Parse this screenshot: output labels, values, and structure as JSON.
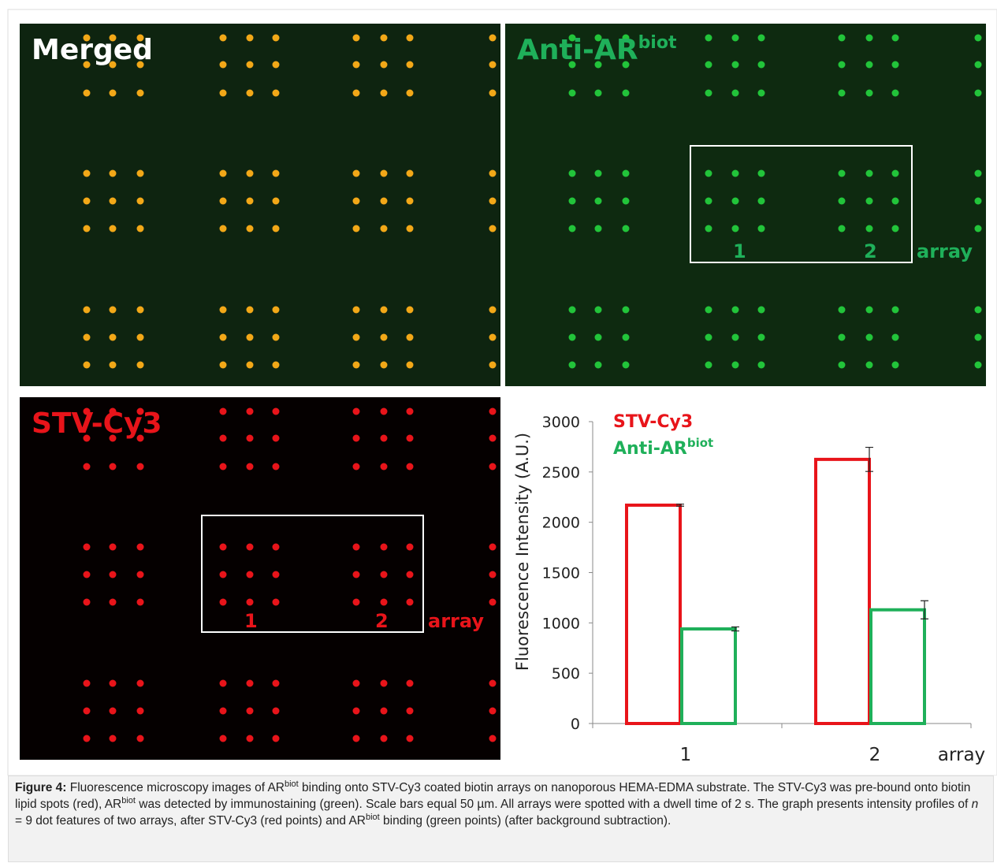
{
  "images": [
    {
      "label": "Merged"
    },
    {
      "label": "Anti-AR",
      "label_sup": "biot",
      "box_labels": [
        "1",
        "2",
        "array"
      ]
    },
    {
      "label": "STV-Cy3",
      "box_labels": [
        "1",
        "2",
        "array"
      ]
    }
  ],
  "chart_data": {
    "type": "bar",
    "y_label": "Fluorescence Intensity (A.U.)",
    "x_label": "array",
    "categories": [
      "1",
      "2"
    ],
    "series": [
      {
        "name": "STV-Cy3",
        "color": "#e8141a",
        "values": [
          2170,
          2625
        ],
        "errors": [
          10,
          120
        ]
      },
      {
        "name": "Anti-AR",
        "name_sup": "biot",
        "color": "#1fb05a",
        "values": [
          940,
          1130
        ],
        "errors": [
          20,
          90
        ]
      }
    ],
    "ylim": [
      0,
      3000
    ],
    "yticks": [
      0,
      500,
      1000,
      1500,
      2000,
      2500,
      3000
    ]
  },
  "caption": {
    "parts": [
      {
        "text": "Figure 4:",
        "style": "bold"
      },
      {
        "text": " Fluorescence microscopy images of AR"
      },
      {
        "text": "biot",
        "style": "sup"
      },
      {
        "text": " binding onto STV-Cy3 coated biotin arrays on nanoporous HEMA-EDMA substrate. The STV-Cy3 was pre-bound onto biotin lipid spots (red), AR"
      },
      {
        "text": "biot",
        "style": "sup"
      },
      {
        "text": " was detected by immunostaining (green). Scale bars equal 50 µm. All arrays were spotted with a dwell time of 2 s. The graph presents intensity profiles of "
      },
      {
        "text": "n",
        "style": "italic"
      },
      {
        "text": " = 9 dot features of two arrays, after STV-Cy3 (red points) and AR"
      },
      {
        "text": "biot",
        "style": "sup"
      },
      {
        "text": " binding (green points) (after background subtraction)."
      }
    ]
  }
}
